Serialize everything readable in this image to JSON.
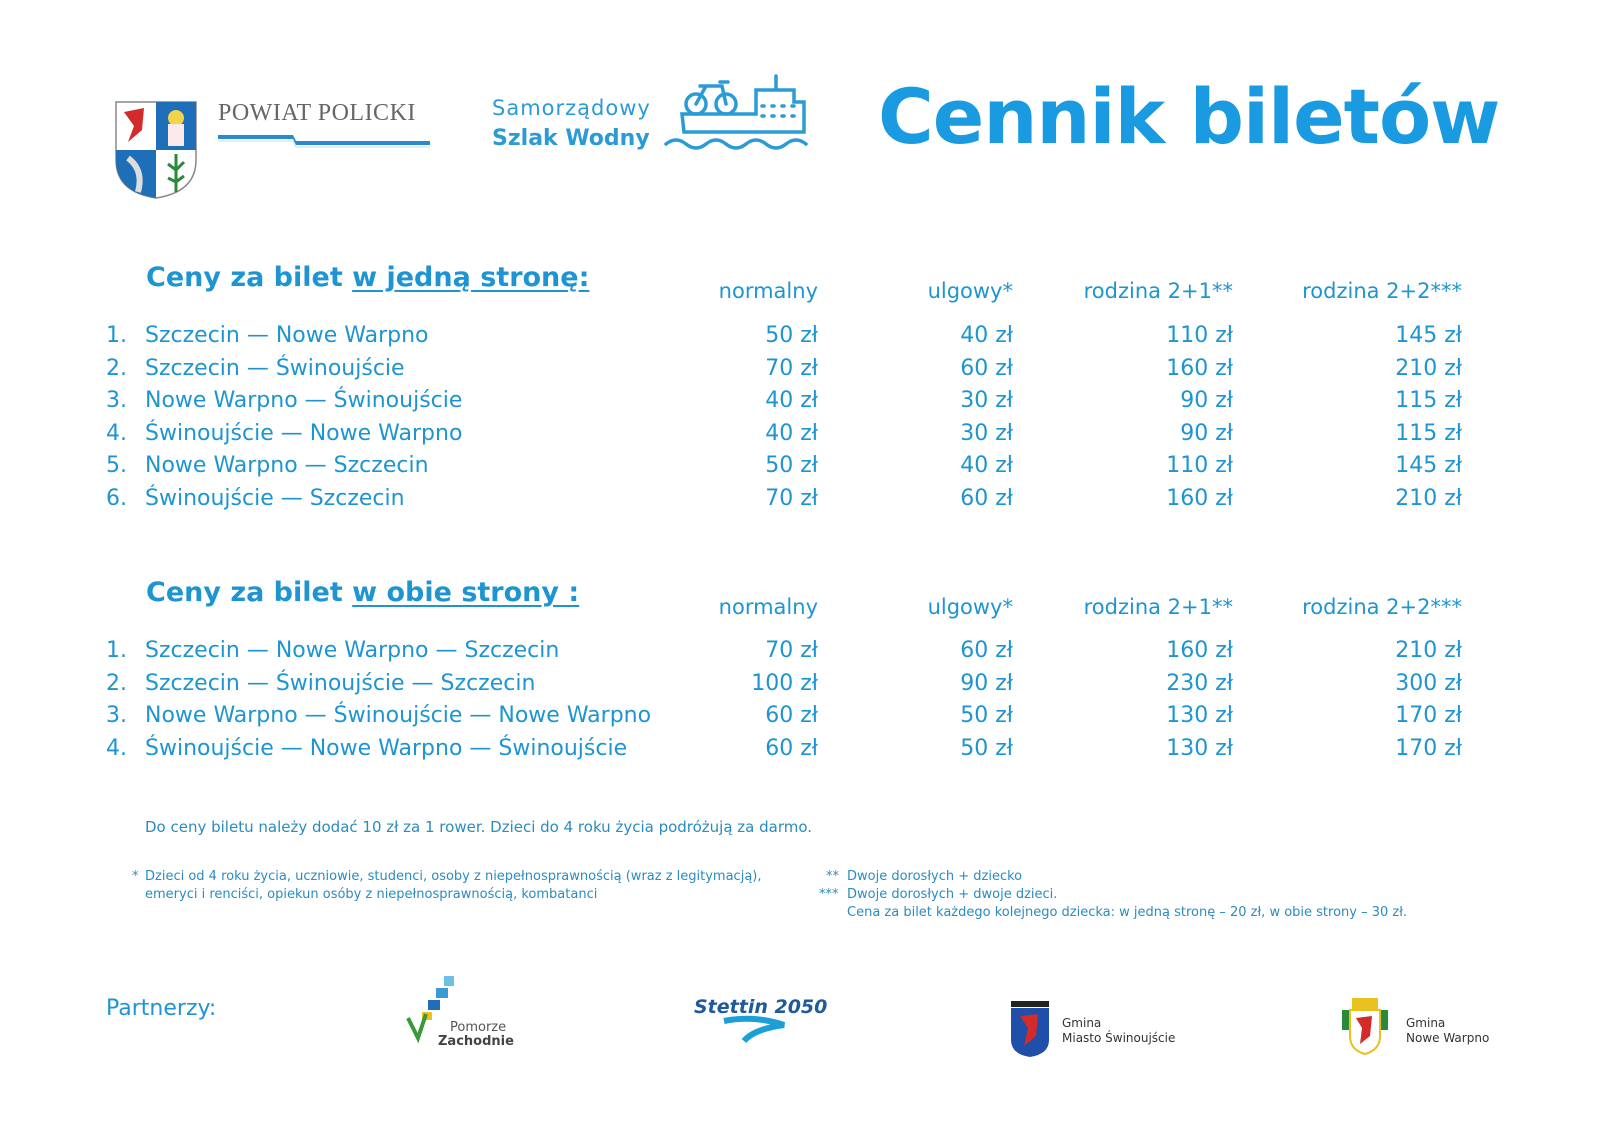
{
  "header": {
    "powiat_logo_text": "POWIAT POLICKI",
    "szlak_line1": "Samorządowy",
    "szlak_line2": "Szlak Wodny",
    "title": "Cennik biletów"
  },
  "columns": [
    "normalny",
    "ulgowy*",
    "rodzina 2+1**",
    "rodzina 2+2***"
  ],
  "one_way": {
    "title_prefix": "Ceny za bilet ",
    "title_underlined": "w jedną stronę:",
    "rows": [
      {
        "no": "1.",
        "route": "Szczecin — Nowe Warpno",
        "prices": [
          "50 zł",
          "40 zł",
          "110 zł",
          "145 zł"
        ]
      },
      {
        "no": "2.",
        "route": "Szczecin — Świnoujście",
        "prices": [
          "70 zł",
          "60 zł",
          "160 zł",
          "210 zł"
        ]
      },
      {
        "no": "3.",
        "route": "Nowe Warpno — Świnoujście",
        "prices": [
          "40 zł",
          "30 zł",
          "90 zł",
          "115 zł"
        ]
      },
      {
        "no": "4.",
        "route": "Świnoujście — Nowe Warpno",
        "prices": [
          "40 zł",
          "30 zł",
          "90 zł",
          "115 zł"
        ]
      },
      {
        "no": "5.",
        "route": "Nowe Warpno — Szczecin",
        "prices": [
          "50 zł",
          "40 zł",
          "110 zł",
          "145 zł"
        ]
      },
      {
        "no": "6.",
        "route": "Świnoujście — Szczecin",
        "prices": [
          "70 zł",
          "60 zł",
          "160 zł",
          "210 zł"
        ]
      }
    ]
  },
  "return": {
    "title_prefix": "Ceny za bilet ",
    "title_underlined": "w obie strony :",
    "rows": [
      {
        "no": "1.",
        "route": "Szczecin — Nowe Warpno — Szczecin",
        "prices": [
          "70 zł",
          "60 zł",
          "160 zł",
          "210 zł"
        ]
      },
      {
        "no": "2.",
        "route": "Szczecin — Świnoujście — Szczecin",
        "prices": [
          "100 zł",
          "90 zł",
          "230 zł",
          "300 zł"
        ]
      },
      {
        "no": "3.",
        "route": "Nowe Warpno — Świnoujście — Nowe Warpno",
        "prices": [
          "60 zł",
          "50 zł",
          "130 zł",
          "170 zł"
        ]
      },
      {
        "no": "4.",
        "route": "Świnoujście — Nowe Warpno — Świnoujście",
        "prices": [
          "60 zł",
          "50 zł",
          "130 zł",
          "170 zł"
        ]
      }
    ]
  },
  "note": "Do ceny biletu należy dodać 10 zł za 1 rower. Dzieci do 4 roku życia podróżują za darmo.",
  "footnotes": {
    "f1_mark": "*",
    "f1_line1": "Dzieci od 4 roku życia, uczniowie, studenci, osoby z niepełnosprawnością (wraz z legitymacją),",
    "f1_line2": "emeryci i renciści, opiekun osóby z niepełnosprawnością, kombatanci",
    "f2_mark": "**",
    "f2": "Dwoje dorosłych + dziecko",
    "f3_mark": "***",
    "f3_line1": "Dwoje dorosłych + dwoje dzieci.",
    "f3_line2": "Cena za bilet każdego kolejnego dziecka: w jedną stronę – 20 zł, w obie strony – 30 zł."
  },
  "partners": {
    "label": "Partnerzy:",
    "pomorze_1": "Pomorze",
    "pomorze_2": "Zachodnie",
    "stettin": "Stettin 2050",
    "swin_1": "Gmina",
    "swin_2": "Miasto Świnoujście",
    "nw_1": "Gmina",
    "nw_2": "Nowe Warpno"
  },
  "colors": {
    "accent": "#1a9ae0",
    "text": "#1e95d2"
  }
}
